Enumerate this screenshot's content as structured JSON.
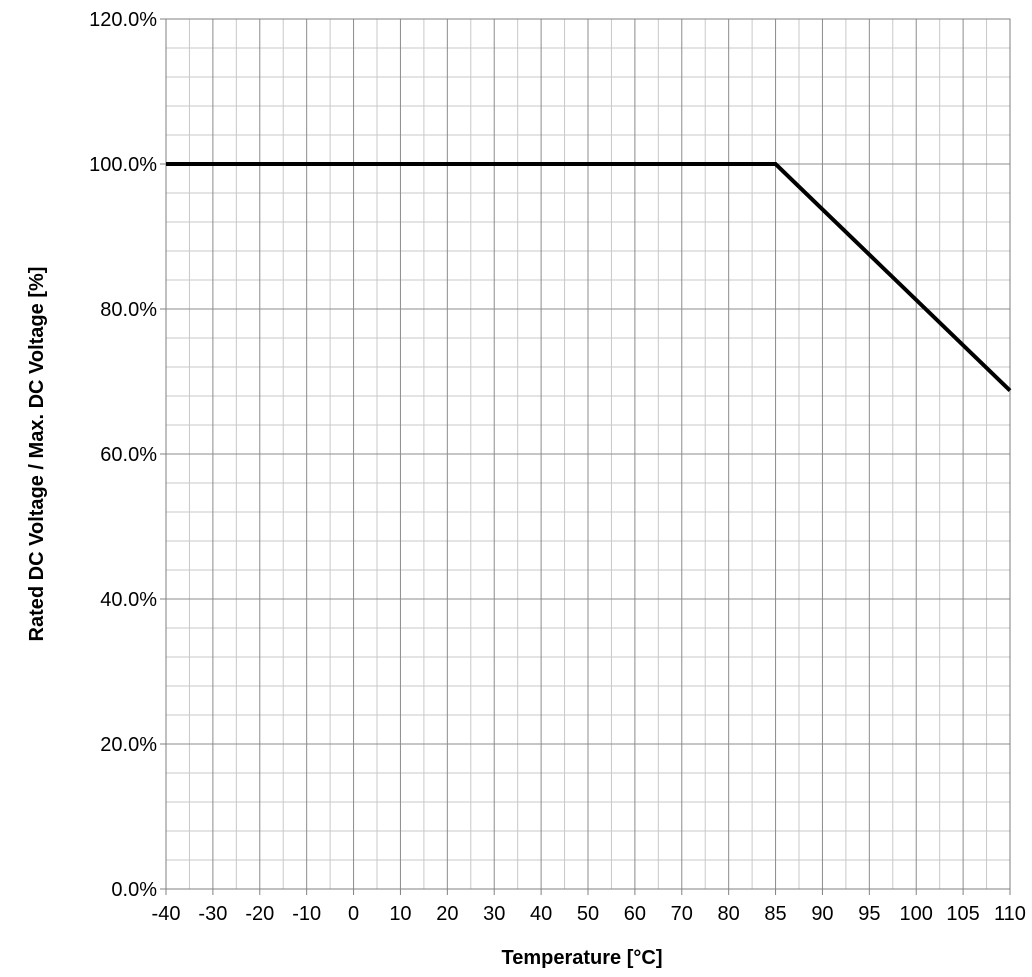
{
  "chart_data": {
    "type": "line",
    "title": "",
    "xlabel": "Temperature [°C]",
    "ylabel": "Rated DC Voltage / Max. DC Voltage [%]",
    "x_categories": [
      "-40",
      "-30",
      "-20",
      "-10",
      "0",
      "10",
      "20",
      "30",
      "40",
      "50",
      "60",
      "70",
      "80",
      "85",
      "90",
      "95",
      "100",
      "105",
      "110"
    ],
    "y_ticks": [
      "0.0%",
      "20.0%",
      "40.0%",
      "60.0%",
      "80.0%",
      "100.0%",
      "120.0%"
    ],
    "ylim": [
      0,
      120
    ],
    "grid": true,
    "series": [
      {
        "color": "#000000",
        "points": [
          {
            "x": "-40",
            "y": 100.0
          },
          {
            "x": "85",
            "y": 100.0
          },
          {
            "x": "110",
            "y": 68.75
          }
        ]
      }
    ]
  }
}
